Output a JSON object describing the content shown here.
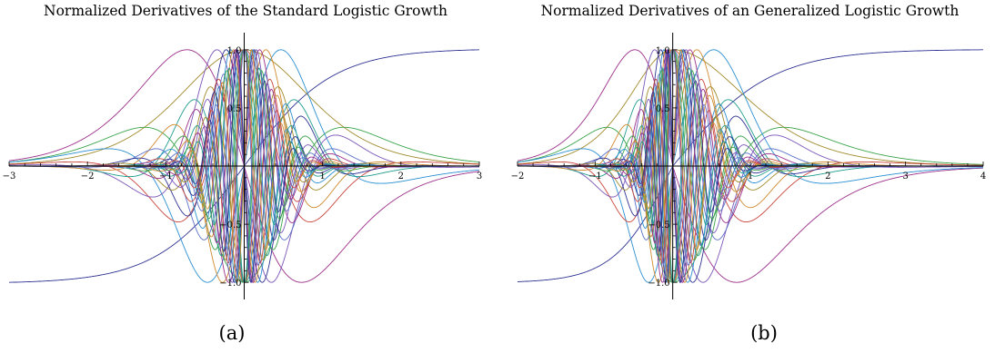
{
  "panels": [
    {
      "label": "(a)",
      "title": "Normalized Derivatives of the Standard Logistic Growth",
      "chart_data": {
        "type": "line",
        "title": "Normalized Derivatives of the Standard Logistic Growth",
        "xlabel": "",
        "ylabel": "",
        "xlim": [
          -3,
          3
        ],
        "ylim": [
          -1.1,
          1.1
        ],
        "x_ticks": [
          "-3",
          "-2",
          "-1",
          "1",
          "2",
          "3"
        ],
        "y_ticks": [
          "-1.0",
          "-0.5",
          "0.5",
          "1.0"
        ],
        "grid": false,
        "legend": "none",
        "curves": {
          "base_function": "logistic 1/(1+e^-x), shown recentered to span -1..1",
          "derivative_orders": 30,
          "normalization": "each curve scaled to max |value| = 1",
          "palette": [
            "#2e3192",
            "#a08a2b",
            "#9c2f8a",
            "#3aa34a",
            "#2b8fd1",
            "#c9463d",
            "#7a55b8",
            "#1f9c8c",
            "#d08a2f",
            "#5a6fc7"
          ]
        }
      }
    },
    {
      "label": "(b)",
      "title": "Normalized Derivatives of an Generalized Logistic Growth",
      "chart_data": {
        "type": "line",
        "title": "Normalized Derivatives of an Generalized Logistic Growth",
        "xlabel": "",
        "ylabel": "",
        "xlim": [
          -2,
          4
        ],
        "ylim": [
          -1.1,
          1.1
        ],
        "x_ticks": [
          "-2",
          "-1",
          "1",
          "2",
          "3",
          "4"
        ],
        "y_ticks": [
          "-1.0",
          "-0.5",
          "0.5",
          "1.0"
        ],
        "grid": false,
        "legend": "none",
        "curves": {
          "base_function": "generalized logistic, shown recentered to span -1..1",
          "derivative_orders": 30,
          "normalization": "each curve scaled to max |value| = 1",
          "palette": [
            "#2e3192",
            "#a08a2b",
            "#9c2f8a",
            "#3aa34a",
            "#2b8fd1",
            "#c9463d",
            "#7a55b8",
            "#1f9c8c",
            "#d08a2f",
            "#5a6fc7"
          ]
        }
      }
    }
  ]
}
